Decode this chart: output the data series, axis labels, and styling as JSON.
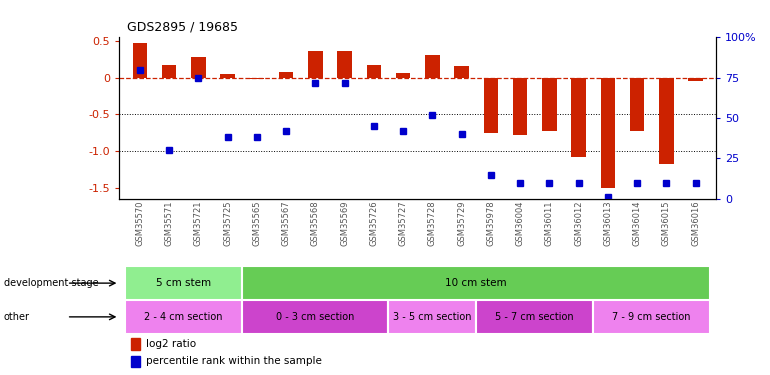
{
  "title": "GDS2895 / 19685",
  "samples": [
    "GSM35570",
    "GSM35571",
    "GSM35721",
    "GSM35725",
    "GSM35565",
    "GSM35567",
    "GSM35568",
    "GSM35569",
    "GSM35726",
    "GSM35727",
    "GSM35728",
    "GSM35729",
    "GSM35978",
    "GSM36004",
    "GSM36011",
    "GSM36012",
    "GSM36013",
    "GSM36014",
    "GSM36015",
    "GSM36016"
  ],
  "log2_ratio": [
    0.48,
    0.18,
    0.28,
    0.05,
    -0.02,
    0.08,
    0.37,
    0.37,
    0.17,
    0.07,
    0.31,
    0.16,
    -0.75,
    -0.78,
    -0.72,
    -1.08,
    -1.5,
    -0.72,
    -1.18,
    -0.05
  ],
  "percentile": [
    80,
    30,
    75,
    38,
    38,
    42,
    72,
    72,
    45,
    42,
    52,
    40,
    15,
    10,
    10,
    10,
    1,
    10,
    10,
    10
  ],
  "ylim_left": [
    -1.65,
    0.55
  ],
  "ylim_right": [
    0,
    100
  ],
  "yticks_left": [
    0.5,
    0.0,
    -0.5,
    -1.0,
    -1.5
  ],
  "yticks_right": [
    100,
    75,
    50,
    25,
    0
  ],
  "dev_stage_groups": [
    {
      "label": "5 cm stem",
      "start": 0,
      "end": 3,
      "color": "#90EE90"
    },
    {
      "label": "10 cm stem",
      "start": 4,
      "end": 19,
      "color": "#66CC55"
    }
  ],
  "other_groups": [
    {
      "label": "2 - 4 cm section",
      "start": 0,
      "end": 3,
      "color": "#EE82EE"
    },
    {
      "label": "0 - 3 cm section",
      "start": 4,
      "end": 8,
      "color": "#CC44CC"
    },
    {
      "label": "3 - 5 cm section",
      "start": 9,
      "end": 11,
      "color": "#EE82EE"
    },
    {
      "label": "5 - 7 cm section",
      "start": 12,
      "end": 15,
      "color": "#CC44CC"
    },
    {
      "label": "7 - 9 cm section",
      "start": 16,
      "end": 19,
      "color": "#EE82EE"
    }
  ],
  "bar_color": "#CC2200",
  "dot_color": "#0000CC",
  "hline_color": "#CC2200",
  "bg_color": "#ffffff",
  "legend_red": "log2 ratio",
  "legend_blue": "percentile rank within the sample"
}
